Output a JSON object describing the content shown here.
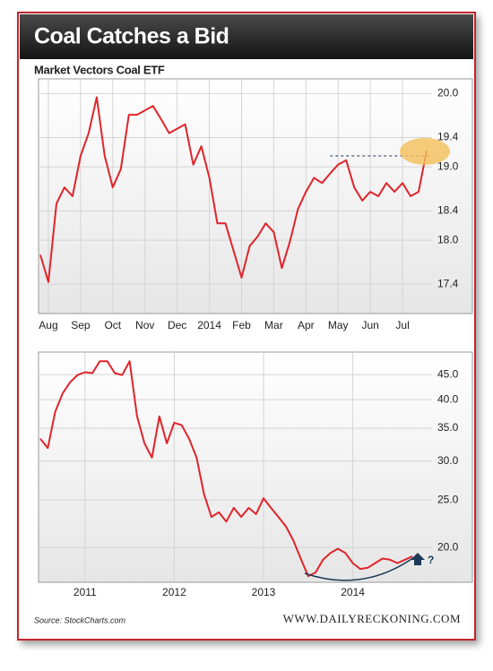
{
  "header": {
    "title": "Coal Catches a Bid"
  },
  "footer": {
    "source": "Source: StockCharts.com",
    "site": "WWW.DAILYRECKONING.COM"
  },
  "chart_data": [
    {
      "type": "line",
      "title": "Market Vectors Coal ETF",
      "color": "#e0242a",
      "log_scale": false,
      "grid": true,
      "categories": [
        null,
        "Aug",
        null,
        null,
        null,
        "Sep",
        null,
        null,
        null,
        "Oct",
        null,
        null,
        null,
        "Nov",
        null,
        null,
        null,
        "Dec",
        null,
        null,
        null,
        "2014",
        null,
        null,
        null,
        "Feb",
        null,
        null,
        null,
        "Mar",
        null,
        null,
        null,
        "Apr",
        null,
        null,
        null,
        "May",
        null,
        null,
        null,
        "Jun",
        null,
        null,
        null,
        "Jul",
        null,
        null,
        null
      ],
      "values": [
        17.8,
        17.43,
        18.5,
        18.72,
        18.6,
        19.15,
        19.46,
        19.95,
        19.15,
        18.72,
        18.97,
        19.71,
        19.71,
        19.77,
        19.83,
        19.65,
        19.46,
        19.52,
        19.58,
        19.03,
        19.28,
        18.85,
        18.23,
        18.23,
        17.86,
        17.49,
        17.92,
        18.05,
        18.23,
        18.11,
        17.62,
        17.98,
        18.42,
        18.66,
        18.85,
        18.78,
        18.91,
        19.03,
        19.09,
        18.72,
        18.54,
        18.66,
        18.6,
        18.78,
        18.66,
        18.78,
        18.6,
        18.66,
        19.22
      ],
      "reference_level": 19.15,
      "ylim": [
        17.0,
        20.2
      ],
      "yticks": [
        {
          "value": 20,
          "label": "20.0"
        },
        19.4,
        {
          "value": 19,
          "label": "19.0"
        },
        18.4,
        {
          "value": 18,
          "label": "18.0"
        },
        17.4
      ]
    },
    {
      "type": "line",
      "color": "#e0242a",
      "log_scale": true,
      "grid": true,
      "annotation": "?",
      "categories": [
        null,
        null,
        null,
        null,
        null,
        null,
        "2011",
        null,
        null,
        null,
        null,
        null,
        null,
        null,
        null,
        null,
        null,
        null,
        "2012",
        null,
        null,
        null,
        null,
        null,
        null,
        null,
        null,
        null,
        null,
        null,
        "2013",
        null,
        null,
        null,
        null,
        null,
        null,
        null,
        null,
        null,
        null,
        null,
        "2014",
        null,
        null,
        null,
        null,
        null,
        null,
        null,
        null
      ],
      "values": [
        33.3,
        31.9,
        37.8,
        41.2,
        43.4,
        44.9,
        45.5,
        45.3,
        47.9,
        47.9,
        45.3,
        44.9,
        47.9,
        37.0,
        32.6,
        30.5,
        37.0,
        32.6,
        35.9,
        35.5,
        33.3,
        30.5,
        25.7,
        23.1,
        23.6,
        22.6,
        24.1,
        23.1,
        24.1,
        23.4,
        25.2,
        24.1,
        23.1,
        22.1,
        20.7,
        19.0,
        17.5,
        17.8,
        18.9,
        19.5,
        19.9,
        19.5,
        18.6,
        18.1,
        18.2,
        18.6,
        19.0,
        18.9,
        18.6,
        18.9,
        19.2
      ],
      "ylim": [
        17,
        50
      ],
      "yticks": [
        {
          "value": 45,
          "label": "45.0"
        },
        {
          "value": 40,
          "label": "40.0"
        },
        {
          "value": 35,
          "label": "35.0"
        },
        {
          "value": 30,
          "label": "30.0"
        },
        {
          "value": 25,
          "label": "25.0"
        },
        {
          "value": 20,
          "label": "20.0"
        }
      ]
    }
  ]
}
